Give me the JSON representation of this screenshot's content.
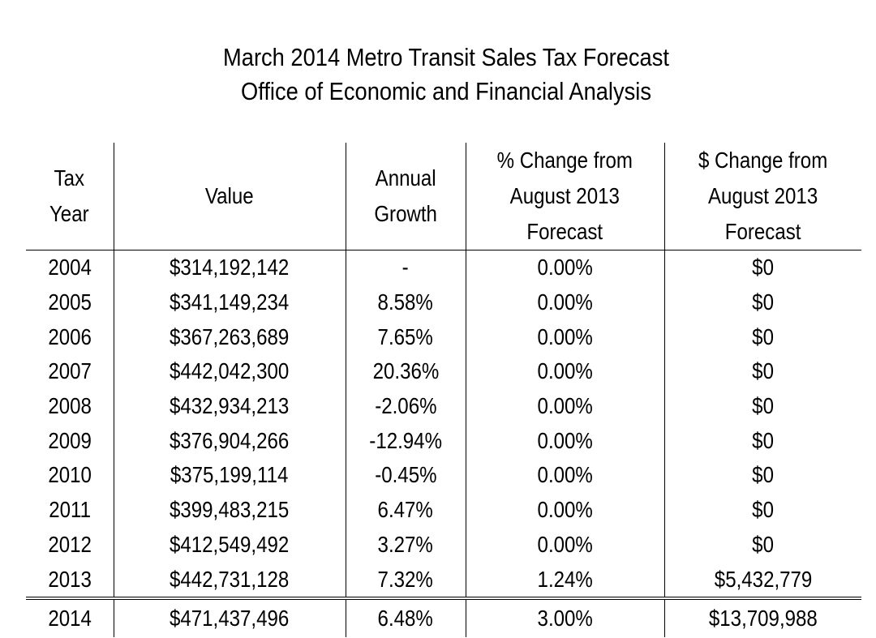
{
  "title": "March 2014 Metro Transit Sales Tax Forecast",
  "subtitle": "Office of Economic and Financial Analysis",
  "headers": {
    "year_line1": "Tax",
    "year_line2": "Year",
    "value": "Value",
    "growth_line1": "Annual",
    "growth_line2": "Growth",
    "pct_line1": "% Change from",
    "pct_line2": "August 2013",
    "pct_line3": "Forecast",
    "dollar_line1": "$ Change from",
    "dollar_line2": "August 2013",
    "dollar_line3": "Forecast"
  },
  "rows": [
    {
      "year": "2004",
      "value": "$314,192,142",
      "growth": "-",
      "pct_change": "0.00%",
      "dollar_change": "$0"
    },
    {
      "year": "2005",
      "value": "$341,149,234",
      "growth": "8.58%",
      "pct_change": "0.00%",
      "dollar_change": "$0"
    },
    {
      "year": "2006",
      "value": "$367,263,689",
      "growth": "7.65%",
      "pct_change": "0.00%",
      "dollar_change": "$0"
    },
    {
      "year": "2007",
      "value": "$442,042,300",
      "growth": "20.36%",
      "pct_change": "0.00%",
      "dollar_change": "$0"
    },
    {
      "year": "2008",
      "value": "$432,934,213",
      "growth": "-2.06%",
      "pct_change": "0.00%",
      "dollar_change": "$0"
    },
    {
      "year": "2009",
      "value": "$376,904,266",
      "growth": "-12.94%",
      "pct_change": "0.00%",
      "dollar_change": "$0"
    },
    {
      "year": "2010",
      "value": "$375,199,114",
      "growth": "-0.45%",
      "pct_change": "0.00%",
      "dollar_change": "$0"
    },
    {
      "year": "2011",
      "value": "$399,483,215",
      "growth": "6.47%",
      "pct_change": "0.00%",
      "dollar_change": "$0"
    },
    {
      "year": "2012",
      "value": "$412,549,492",
      "growth": "3.27%",
      "pct_change": "0.00%",
      "dollar_change": "$0"
    },
    {
      "year": "2013",
      "value": "$442,731,128",
      "growth": "7.32%",
      "pct_change": "1.24%",
      "dollar_change": "$5,432,779"
    },
    {
      "year": "2014",
      "value": "$471,437,496",
      "growth": "6.48%",
      "pct_change": "3.00%",
      "dollar_change": "$13,709,988"
    }
  ]
}
